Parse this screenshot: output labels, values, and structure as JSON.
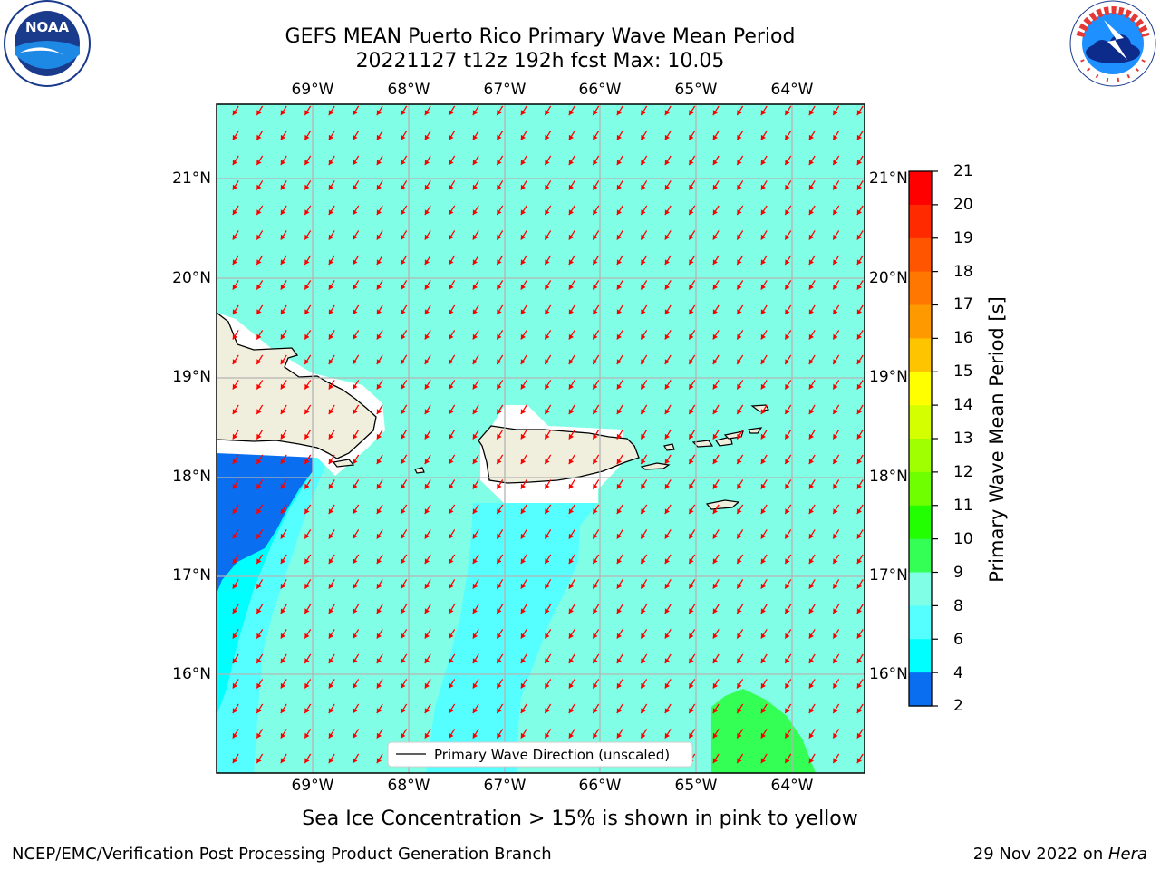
{
  "header": {
    "title_line1": "GEFS MEAN Puerto Rico Primary Wave Mean Period",
    "title_line2": "20221127 t12z 192h fcst   Max: 10.05"
  },
  "logos": {
    "left": {
      "name": "noaa-logo",
      "text": "NOAA"
    },
    "right": {
      "name": "nws-logo",
      "text": "NATIONAL WEATHER SERVICE"
    }
  },
  "map": {
    "lon_labels": [
      "69°W",
      "68°W",
      "67°W",
      "66°W",
      "65°W",
      "64°W"
    ],
    "lat_labels": [
      "21°N",
      "20°N",
      "19°N",
      "18°N",
      "17°N",
      "16°N"
    ],
    "legend_label": "Primary Wave Direction (unscaled)",
    "colors": {
      "ocean_9_10": "#80ffe6",
      "band_8_9": "#55ffff",
      "band_6_8": "#00ffff",
      "band_4_6": "#0a6ef0",
      "band_10_11": "#33ff55",
      "land": "#f0eedc",
      "arrow": "#ff0000",
      "grid": "#b4b4b4"
    }
  },
  "colorbar": {
    "label": "Primary Wave Mean Period [s]",
    "ticks": [
      "21",
      "20",
      "19",
      "18",
      "17",
      "16",
      "15",
      "14",
      "13",
      "12",
      "11",
      "10",
      "9",
      "8",
      "6",
      "4",
      "2"
    ],
    "colors": [
      "#ff0000",
      "#ff2a00",
      "#ff5500",
      "#ff7700",
      "#ff9900",
      "#ffc400",
      "#ffff00",
      "#d4ff00",
      "#a0ff00",
      "#70ff00",
      "#22ff00",
      "#33ff55",
      "#80ffe6",
      "#55ffff",
      "#00ffff",
      "#0a6ef0",
      "#0000ff"
    ]
  },
  "footer": {
    "subtitle": "Sea Ice Concentration > 15% is shown in pink to yellow",
    "left": "NCEP/EMC/Verification Post Processing Product Generation Branch",
    "right_date": "29 Nov 2022 on ",
    "right_host": "Hera"
  }
}
